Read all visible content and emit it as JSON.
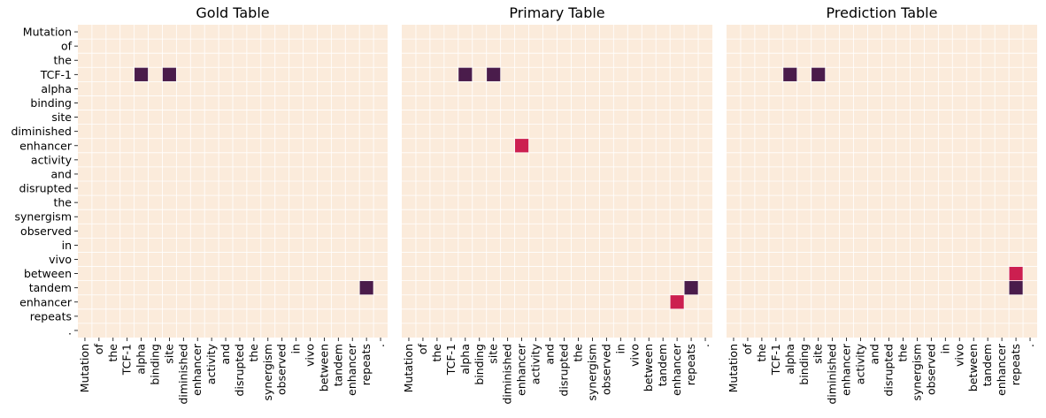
{
  "chart_data": [
    {
      "type": "heatmap",
      "title": "Gold Table",
      "tokens": [
        "Mutation",
        "of",
        "the",
        "TCF-1",
        "alpha",
        "binding",
        "site",
        "diminished",
        "enhancer",
        "activity",
        "and",
        "disrupted",
        "the",
        "synergism",
        "observed",
        "in",
        "vivo",
        "between",
        "tandem",
        "enhancer",
        "repeats",
        "."
      ],
      "show_row_labels": true,
      "cells": [
        {
          "row": 3,
          "col": 4,
          "label": 1
        },
        {
          "row": 3,
          "col": 6,
          "label": 1
        },
        {
          "row": 18,
          "col": 20,
          "label": 1
        }
      ]
    },
    {
      "type": "heatmap",
      "title": "Primary Table",
      "tokens": [
        "Mutation",
        "of",
        "the",
        "TCF-1",
        "alpha",
        "binding",
        "site",
        "diminished",
        "enhancer",
        "activity",
        "and",
        "disrupted",
        "the",
        "synergism",
        "observed",
        "in",
        "vivo",
        "between",
        "tandem",
        "enhancer",
        "repeats",
        "."
      ],
      "show_row_labels": false,
      "cells": [
        {
          "row": 3,
          "col": 4,
          "label": 1
        },
        {
          "row": 3,
          "col": 6,
          "label": 1
        },
        {
          "row": 8,
          "col": 8,
          "label": 2
        },
        {
          "row": 18,
          "col": 20,
          "label": 1
        },
        {
          "row": 19,
          "col": 19,
          "label": 2
        }
      ]
    },
    {
      "type": "heatmap",
      "title": "Prediction Table",
      "tokens": [
        "Mutation",
        "of",
        "the",
        "TCF-1",
        "alpha",
        "binding",
        "site",
        "diminished",
        "enhancer",
        "activity",
        "and",
        "disrupted",
        "the",
        "synergism",
        "observed",
        "in",
        "vivo",
        "between",
        "tandem",
        "enhancer",
        "repeats",
        "."
      ],
      "show_row_labels": false,
      "cells": [
        {
          "row": 3,
          "col": 4,
          "label": 1
        },
        {
          "row": 3,
          "col": 6,
          "label": 1
        },
        {
          "row": 17,
          "col": 20,
          "label": 2
        },
        {
          "row": 18,
          "col": 20,
          "label": 1
        }
      ]
    }
  ],
  "colors": {
    "background_cell": "#fbebdb",
    "grid_line": "#ffffff",
    "label_1": "#4a1c4b",
    "label_2": "#cc1f50"
  }
}
